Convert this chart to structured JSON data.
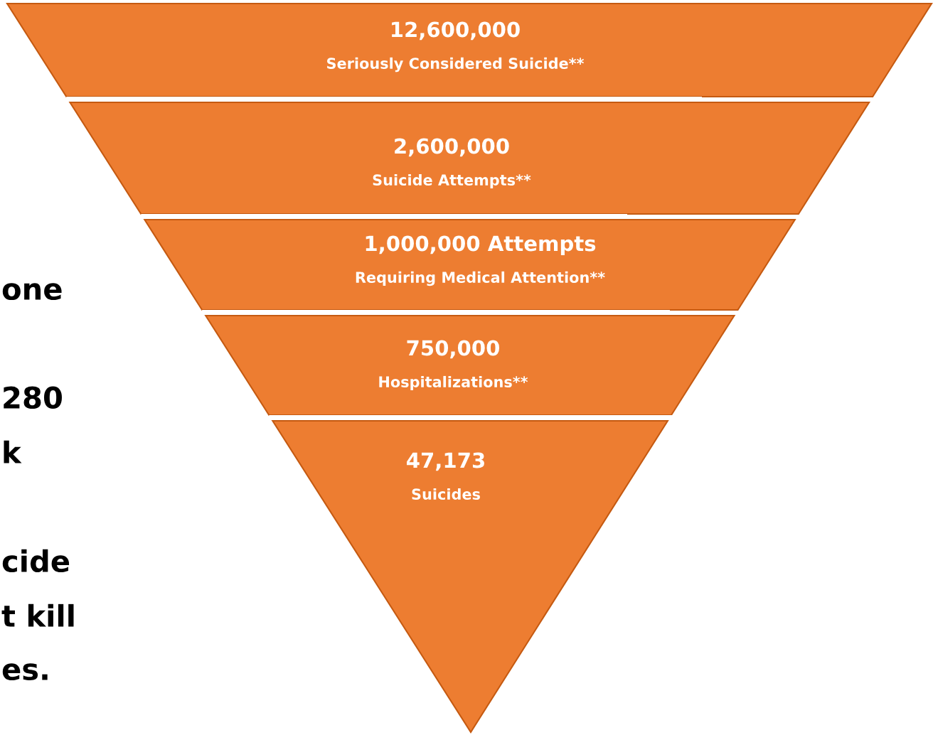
{
  "chart_data": {
    "type": "other",
    "categories": [
      "Seriously Considered Suicide**",
      "Suicide Attempts**",
      "Requiring Medical Attention**",
      "Hospitalizations**",
      "Suicides"
    ],
    "values": [
      12600000,
      2600000,
      1000000,
      750000,
      47173
    ],
    "value_labels": [
      "12,600,000",
      "2,600,000",
      "1,000,000 Attempts",
      "750,000",
      "47,173"
    ],
    "color": "#ed7d31",
    "annotations": [
      "one",
      "280",
      "k",
      "cide",
      "t kill",
      "es."
    ]
  }
}
